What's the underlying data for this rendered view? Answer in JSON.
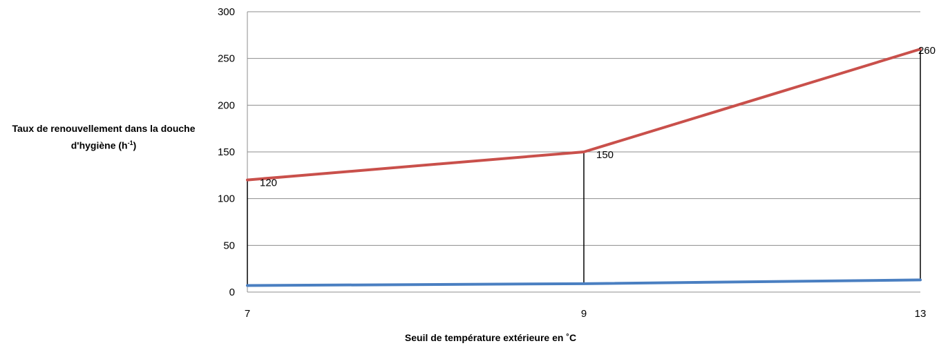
{
  "chart_data": {
    "type": "line",
    "ylabel_main": "Taux de renouvellement dans la douche d'hygiène (h",
    "ylabel_sup": "-1",
    "ylabel_end": ")",
    "xlabel": "Seuil de température extérieure en ˚C",
    "x": [
      7,
      9,
      13
    ],
    "x_tick_labels": [
      "7",
      "9",
      "13"
    ],
    "ylim": [
      0,
      300
    ],
    "y_ticks": [
      0,
      50,
      100,
      150,
      200,
      250,
      300
    ],
    "grid": true,
    "series": [
      {
        "values": [
          120,
          150,
          260
        ],
        "color": "#c9504b",
        "data_labels": [
          "120",
          "150",
          "260"
        ]
      },
      {
        "values": [
          7,
          9,
          13
        ],
        "color": "#4a7fc1"
      }
    ],
    "drop_lines": true
  }
}
